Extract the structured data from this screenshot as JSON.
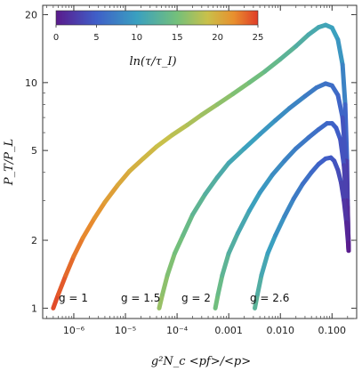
{
  "chart_data": {
    "type": "line",
    "title": "",
    "xlabel": "g²N_c <pf>/<p>",
    "ylabel": "P_T/P_L",
    "xscale": "log",
    "yscale": "log",
    "xlim": [
      2.5e-07,
      0.3
    ],
    "ylim": [
      0.9,
      22
    ],
    "x_ticks": [
      {
        "value": 1e-06,
        "label": "10⁻⁶"
      },
      {
        "value": 1e-05,
        "label": "10⁻⁵"
      },
      {
        "value": 0.0001,
        "label": "10⁻⁴"
      },
      {
        "value": 0.001,
        "label": "0.001"
      },
      {
        "value": 0.01,
        "label": "0.010"
      },
      {
        "value": 0.1,
        "label": "0.100"
      }
    ],
    "y_ticks": [
      {
        "value": 1,
        "label": "1"
      },
      {
        "value": 2,
        "label": "2"
      },
      {
        "value": 5,
        "label": "5"
      },
      {
        "value": 10,
        "label": "10"
      },
      {
        "value": 20,
        "label": "20"
      }
    ],
    "colorbar": {
      "label": "ln(τ/τ_I)",
      "min": 0,
      "max": 25,
      "ticks": [
        "0",
        "5",
        "10",
        "15",
        "20",
        "25"
      ],
      "colors": [
        "#5a1a8c",
        "#3f5fc8",
        "#3aa0c0",
        "#74c07a",
        "#c9c04a",
        "#e8902e",
        "#e03c28"
      ]
    },
    "series": [
      {
        "name": "g = 1",
        "x": [
          4e-07,
          5e-07,
          7e-07,
          1e-06,
          1.5e-06,
          2.5e-06,
          4e-06,
          7e-06,
          1.2e-05,
          2.2e-05,
          4e-05,
          8e-05,
          0.00016,
          0.0003,
          0.0006,
          0.0012,
          0.0025,
          0.005,
          0.01,
          0.02,
          0.035,
          0.055,
          0.075,
          0.1,
          0.13,
          0.16,
          0.18,
          0.195,
          0.2,
          0.205,
          0.21
        ],
        "y": [
          1.0,
          1.15,
          1.4,
          1.7,
          2.05,
          2.5,
          2.95,
          3.5,
          4.05,
          4.6,
          5.2,
          5.85,
          6.5,
          7.2,
          8.0,
          8.9,
          10.0,
          11.2,
          12.7,
          14.5,
          16.3,
          17.6,
          18.0,
          17.5,
          15.5,
          12.0,
          8.0,
          4.5,
          3.0,
          2.2,
          1.8
        ]
      },
      {
        "name": "g = 1.5",
        "x": [
          4.5e-05,
          5.2e-05,
          6.5e-05,
          9e-05,
          0.00013,
          0.0002,
          0.00035,
          0.0006,
          0.001,
          0.002,
          0.004,
          0.008,
          0.015,
          0.03,
          0.05,
          0.075,
          0.1,
          0.13,
          0.16,
          0.185,
          0.2,
          0.21
        ],
        "y": [
          1.0,
          1.15,
          1.4,
          1.75,
          2.1,
          2.6,
          3.2,
          3.8,
          4.4,
          5.1,
          5.9,
          6.8,
          7.7,
          8.7,
          9.5,
          9.9,
          9.7,
          8.8,
          7.0,
          4.5,
          2.8,
          1.8
        ]
      },
      {
        "name": "g = 2",
        "x": [
          0.00055,
          0.00062,
          0.00075,
          0.001,
          0.0015,
          0.0025,
          0.004,
          0.007,
          0.012,
          0.02,
          0.035,
          0.055,
          0.08,
          0.1,
          0.12,
          0.145,
          0.17,
          0.19,
          0.205,
          0.21
        ],
        "y": [
          1.0,
          1.15,
          1.4,
          1.75,
          2.15,
          2.7,
          3.25,
          3.9,
          4.5,
          5.1,
          5.7,
          6.2,
          6.6,
          6.6,
          6.3,
          5.6,
          4.3,
          3.0,
          2.1,
          1.8
        ]
      },
      {
        "name": "g = 2.6",
        "x": [
          0.0032,
          0.0036,
          0.0043,
          0.0057,
          0.008,
          0.012,
          0.018,
          0.027,
          0.04,
          0.055,
          0.075,
          0.095,
          0.11,
          0.13,
          0.15,
          0.17,
          0.19,
          0.205,
          0.21
        ],
        "y": [
          1.0,
          1.15,
          1.4,
          1.75,
          2.1,
          2.55,
          3.05,
          3.55,
          4.0,
          4.35,
          4.6,
          4.65,
          4.5,
          4.1,
          3.6,
          3.0,
          2.4,
          1.95,
          1.8
        ]
      }
    ]
  }
}
